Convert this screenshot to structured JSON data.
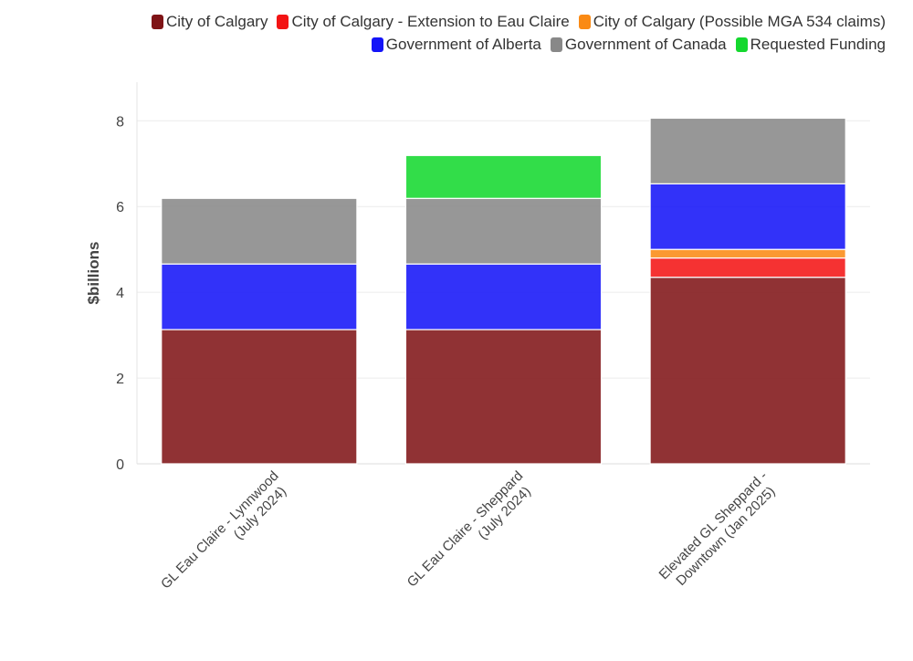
{
  "chart_data": {
    "type": "bar",
    "stacked": true,
    "title": "",
    "xlabel": "",
    "ylabel": "$billions",
    "ylim": [
      0,
      8.9
    ],
    "yticks": [
      0,
      2,
      4,
      6,
      8
    ],
    "grid": true,
    "legend_position": "top-right",
    "categories": [
      [
        "GL Eau Claire - Lynnwood",
        "(July 2024)"
      ],
      [
        "GL Eau Claire - Sheppard",
        "(July 2024)"
      ],
      [
        "Elevated GL Sheppard -",
        "Downtown (Jan 2025)"
      ]
    ],
    "series": [
      {
        "name": "City of Calgary",
        "color": "#7f1416",
        "values": [
          3.13,
          3.13,
          4.35
        ]
      },
      {
        "name": "City of Calgary - Extension to Eau Claire",
        "color": "#f31414",
        "values": [
          0,
          0,
          0.45
        ]
      },
      {
        "name": "City of Calgary (Possible MGA 534 claims)",
        "color": "#fa8a14",
        "values": [
          0,
          0,
          0.2
        ]
      },
      {
        "name": "Government of Alberta",
        "color": "#1414f8",
        "values": [
          1.53,
          1.53,
          1.53
        ]
      },
      {
        "name": "Government of Canada",
        "color": "#888888",
        "values": [
          1.53,
          1.53,
          1.53
        ]
      },
      {
        "name": "Requested Funding",
        "color": "#14d82e",
        "values": [
          0,
          1.0,
          0
        ]
      }
    ]
  }
}
